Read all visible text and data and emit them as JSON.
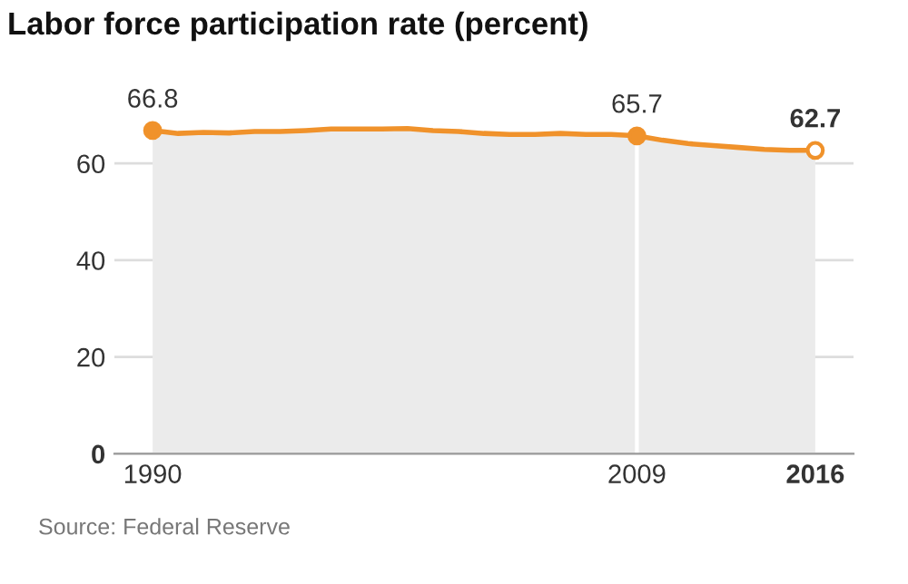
{
  "chart_data": {
    "type": "area",
    "title": "Labor force participation rate (percent)",
    "x": [
      1990,
      1990.5,
      1991,
      1992,
      1993,
      1994,
      1995,
      1996,
      1997,
      1998,
      1999,
      2000,
      2001,
      2002,
      2003,
      2004,
      2005,
      2006,
      2007,
      2008,
      2009,
      2010,
      2011,
      2012,
      2013,
      2014,
      2015,
      2016
    ],
    "series": [
      {
        "color": "#f0922b",
        "values": [
          66.8,
          66.5,
          66.2,
          66.4,
          66.3,
          66.6,
          66.6,
          66.8,
          67.1,
          67.1,
          67.1,
          67.2,
          66.8,
          66.6,
          66.2,
          66.0,
          66.0,
          66.2,
          66.0,
          66.0,
          65.7,
          64.8,
          64.1,
          63.7,
          63.3,
          62.9,
          62.7,
          62.7
        ]
      }
    ],
    "xlim": [
      1988.5,
      2017.5
    ],
    "xticks": [
      1990,
      2009,
      2016
    ],
    "ylim": [
      0,
      70
    ],
    "yticks": [
      0,
      20,
      40,
      60
    ],
    "grid": "y",
    "ref_lines": [
      {
        "axis": "x",
        "value": 2009,
        "color": "#ffffff"
      }
    ],
    "annotations": [
      {
        "text": "66.8",
        "x": 1990,
        "y": 66.8
      },
      {
        "text": "65.7",
        "x": 2009,
        "y": 65.7
      },
      {
        "text": "62.7",
        "x": 2016,
        "y": 62.7
      },
      "Source: Federal Reserve"
    ]
  }
}
